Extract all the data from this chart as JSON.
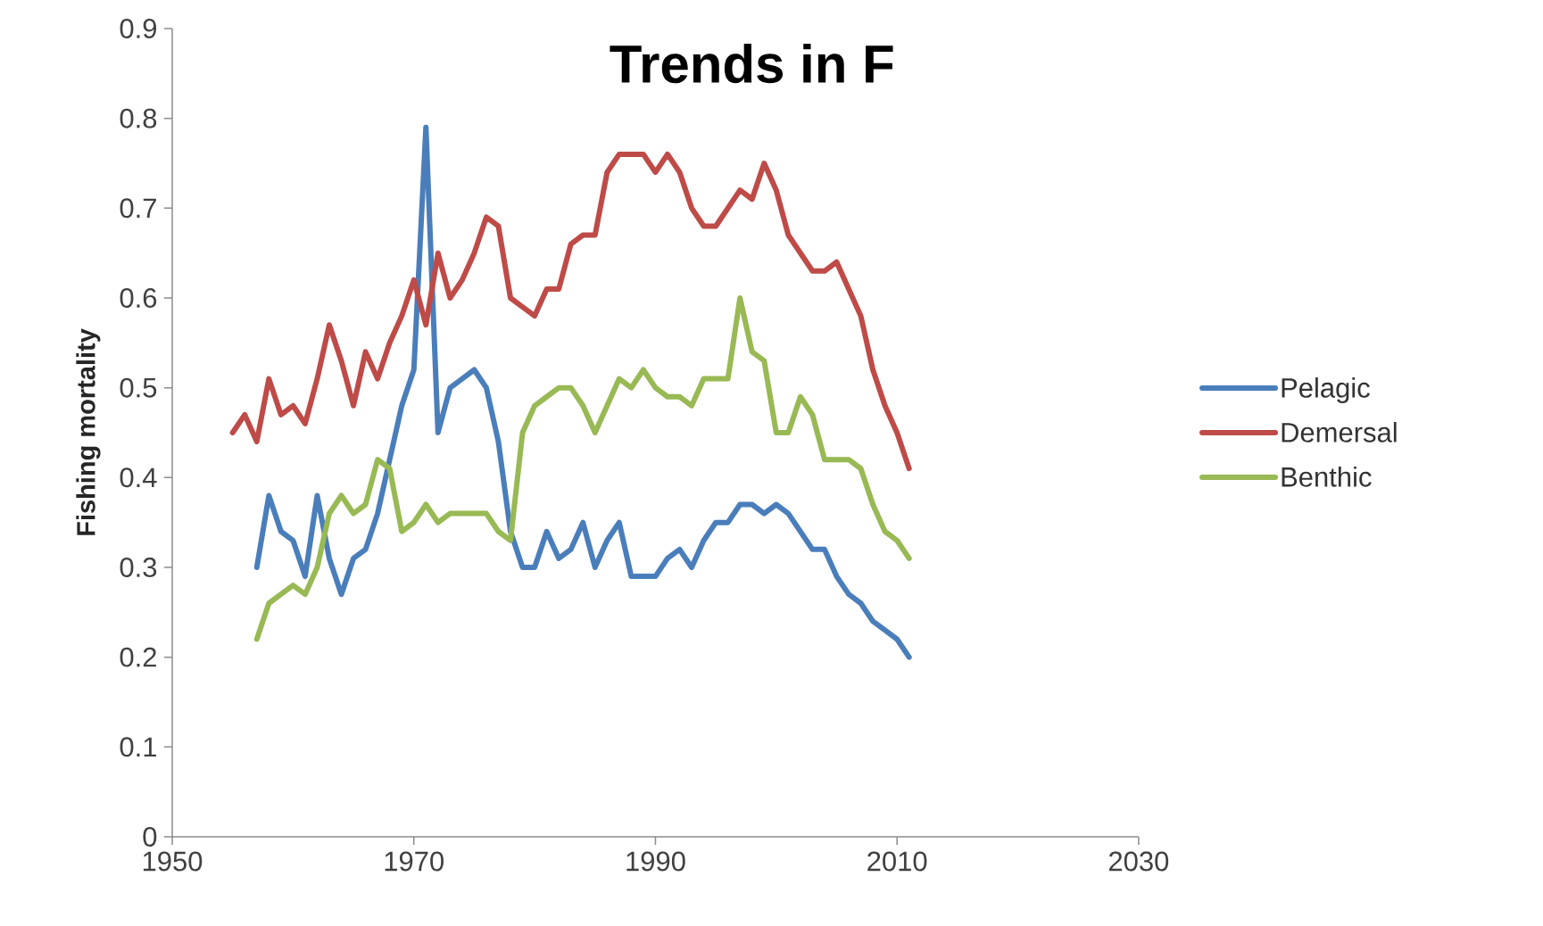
{
  "chart_data": {
    "type": "line",
    "title": "Trends in F",
    "ylabel": "Fishing mortality",
    "xlim": [
      1950,
      2030
    ],
    "xticks": [
      1950,
      1970,
      1990,
      2010,
      2030
    ],
    "ylim": [
      0,
      0.9
    ],
    "yticks": [
      0,
      0.1,
      0.2,
      0.3,
      0.4,
      0.5,
      0.6,
      0.7,
      0.8,
      0.9
    ],
    "legend": "right",
    "grid": false,
    "series": [
      {
        "name": "Pelagic",
        "color": "#4a7ebb",
        "x": [
          1957,
          1958,
          1959,
          1960,
          1961,
          1962,
          1963,
          1964,
          1965,
          1966,
          1967,
          1968,
          1969,
          1970,
          1971,
          1972,
          1973,
          1974,
          1975,
          1976,
          1977,
          1978,
          1979,
          1980,
          1981,
          1982,
          1983,
          1984,
          1985,
          1986,
          1987,
          1988,
          1989,
          1990,
          1991,
          1992,
          1993,
          1994,
          1995,
          1996,
          1997,
          1998,
          1999,
          2000,
          2001,
          2002,
          2003,
          2004,
          2005,
          2006,
          2007,
          2008,
          2009,
          2010,
          2011
        ],
        "values": [
          0.3,
          0.38,
          0.34,
          0.33,
          0.29,
          0.38,
          0.31,
          0.27,
          0.31,
          0.32,
          0.36,
          0.42,
          0.48,
          0.52,
          0.79,
          0.45,
          0.5,
          0.51,
          0.52,
          0.5,
          0.44,
          0.34,
          0.3,
          0.3,
          0.34,
          0.31,
          0.32,
          0.35,
          0.3,
          0.33,
          0.35,
          0.29,
          0.29,
          0.29,
          0.31,
          0.32,
          0.3,
          0.33,
          0.35,
          0.35,
          0.37,
          0.37,
          0.36,
          0.37,
          0.36,
          0.34,
          0.32,
          0.32,
          0.29,
          0.27,
          0.26,
          0.24,
          0.23,
          0.22,
          0.2
        ]
      },
      {
        "name": "Demersal",
        "color": "#be4b48",
        "x": [
          1955,
          1956,
          1957,
          1958,
          1959,
          1960,
          1961,
          1962,
          1963,
          1964,
          1965,
          1966,
          1967,
          1968,
          1969,
          1970,
          1971,
          1972,
          1973,
          1974,
          1975,
          1976,
          1977,
          1978,
          1979,
          1980,
          1981,
          1982,
          1983,
          1984,
          1985,
          1986,
          1987,
          1988,
          1989,
          1990,
          1991,
          1992,
          1993,
          1994,
          1995,
          1996,
          1997,
          1998,
          1999,
          2000,
          2001,
          2002,
          2003,
          2004,
          2005,
          2006,
          2007,
          2008,
          2009,
          2010,
          2011
        ],
        "values": [
          0.45,
          0.47,
          0.44,
          0.51,
          0.47,
          0.48,
          0.46,
          0.51,
          0.57,
          0.53,
          0.48,
          0.54,
          0.51,
          0.55,
          0.58,
          0.62,
          0.57,
          0.65,
          0.6,
          0.62,
          0.65,
          0.69,
          0.68,
          0.6,
          0.59,
          0.58,
          0.61,
          0.61,
          0.66,
          0.67,
          0.67,
          0.74,
          0.76,
          0.76,
          0.76,
          0.74,
          0.76,
          0.74,
          0.7,
          0.68,
          0.68,
          0.7,
          0.72,
          0.71,
          0.75,
          0.72,
          0.67,
          0.65,
          0.63,
          0.63,
          0.64,
          0.61,
          0.58,
          0.52,
          0.48,
          0.45,
          0.41
        ]
      },
      {
        "name": "Benthic",
        "color": "#98b954",
        "x": [
          1957,
          1958,
          1959,
          1960,
          1961,
          1962,
          1963,
          1964,
          1965,
          1966,
          1967,
          1968,
          1969,
          1970,
          1971,
          1972,
          1973,
          1974,
          1975,
          1976,
          1977,
          1978,
          1979,
          1980,
          1981,
          1982,
          1983,
          1984,
          1985,
          1986,
          1987,
          1988,
          1989,
          1990,
          1991,
          1992,
          1993,
          1994,
          1995,
          1996,
          1997,
          1998,
          1999,
          2000,
          2001,
          2002,
          2003,
          2004,
          2005,
          2006,
          2007,
          2008,
          2009,
          2010,
          2011
        ],
        "values": [
          0.22,
          0.26,
          0.27,
          0.28,
          0.27,
          0.3,
          0.36,
          0.38,
          0.36,
          0.37,
          0.42,
          0.41,
          0.34,
          0.35,
          0.37,
          0.35,
          0.36,
          0.36,
          0.36,
          0.36,
          0.34,
          0.33,
          0.45,
          0.48,
          0.49,
          0.5,
          0.5,
          0.48,
          0.45,
          0.48,
          0.51,
          0.5,
          0.52,
          0.5,
          0.49,
          0.49,
          0.48,
          0.51,
          0.51,
          0.51,
          0.6,
          0.54,
          0.53,
          0.45,
          0.45,
          0.49,
          0.47,
          0.42,
          0.42,
          0.42,
          0.41,
          0.37,
          0.34,
          0.33,
          0.31
        ]
      }
    ]
  }
}
